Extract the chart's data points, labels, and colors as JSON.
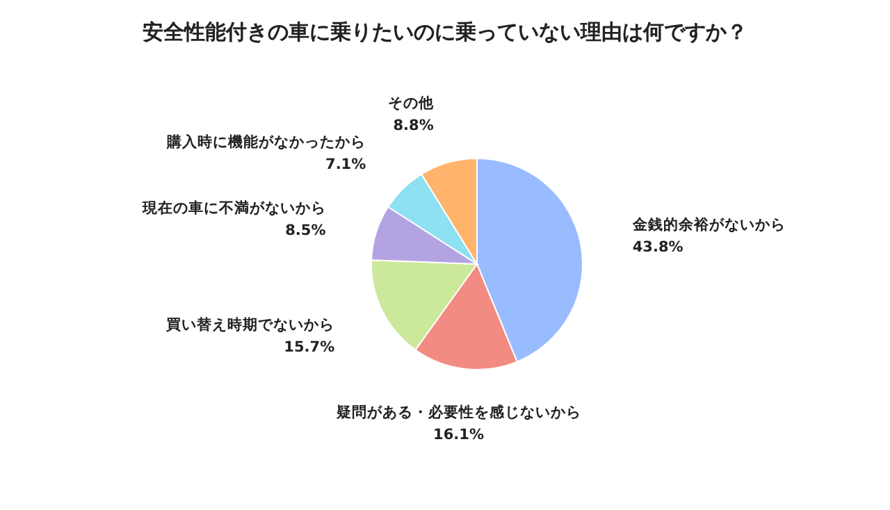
{
  "chart_data": {
    "type": "pie",
    "title": "安全性能付きの車に乗りたいのに乗っていない理由は何ですか？",
    "categories": [
      "金銭的余裕がないから",
      "疑問がある・必要性を感じないから",
      "買い替え時期でないから",
      "現在の車に不満がないから",
      "購入時に機能がなかったから",
      "その他"
    ],
    "values": [
      43.8,
      16.1,
      15.7,
      8.5,
      7.1,
      8.8
    ],
    "value_labels": [
      "43.8%",
      "16.1%",
      "15.7%",
      "8.5%",
      "7.1%",
      "8.8%"
    ],
    "colors": [
      "#99bbff",
      "#f28b82",
      "#cce89a",
      "#b3a3e3",
      "#8ee0f2",
      "#ffb36b"
    ]
  }
}
